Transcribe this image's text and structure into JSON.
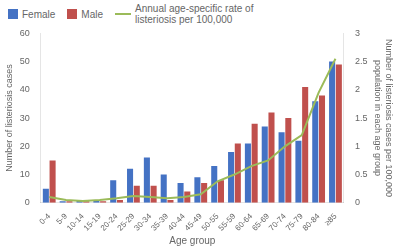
{
  "chart_data": {
    "type": "bar",
    "categories": [
      "0-4",
      "5-9",
      "10-14",
      "15-19",
      "20-24",
      "25-29",
      "30-34",
      "35-39",
      "40-44",
      "45-49",
      "50-55",
      "55-59",
      "60-64",
      "65-69",
      "70-74",
      "75-79",
      "80-84",
      "≥85"
    ],
    "series": [
      {
        "name": "Female",
        "color": "#4472c4",
        "values": [
          5,
          0.5,
          1,
          1,
          8,
          12,
          16,
          10,
          7,
          9,
          13,
          18,
          21,
          27,
          25,
          22,
          36,
          50
        ]
      },
      {
        "name": "Male",
        "color": "#c0504d",
        "values": [
          15,
          0.5,
          0.5,
          0.5,
          1,
          6,
          6,
          1,
          4,
          7,
          8,
          21,
          28,
          32,
          30,
          41,
          38,
          49
        ]
      },
      {
        "name": "Annual age-specific rate of\nlisteriosis per 100,000",
        "type": "line",
        "axis": "y2",
        "color": "#9bbb59",
        "values": [
          0.1,
          0.05,
          0.03,
          0.05,
          0.08,
          0.12,
          0.1,
          0.08,
          0.1,
          0.15,
          0.38,
          0.5,
          0.65,
          0.75,
          1.0,
          1.2,
          1.95,
          2.55
        ]
      }
    ],
    "xlabel": "Age group",
    "ylabel": "Number of listeriosis cases",
    "y2label": "Number of listeriosis cases per 100,000\npopulation in each age group",
    "ylim": [
      0,
      60
    ],
    "yticks": [
      0,
      10,
      20,
      30,
      40,
      50,
      60
    ],
    "y2lim": [
      0,
      3
    ],
    "y2ticks": [
      0,
      0.5,
      1,
      1.5,
      2,
      2.5,
      3
    ],
    "grid": false,
    "legend": "upper left"
  }
}
